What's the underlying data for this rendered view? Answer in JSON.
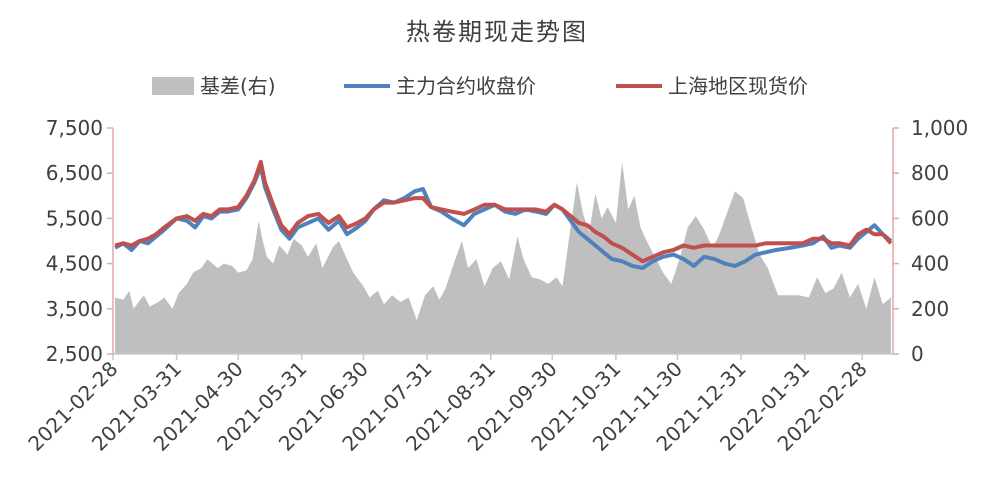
{
  "chart_data": {
    "type": "line",
    "title": "热卷期现走势图",
    "legend_position": "top",
    "grid": false,
    "left_axis": {
      "ylim": [
        2500,
        7500
      ],
      "ticks": [
        7500,
        6500,
        5500,
        4500,
        3500,
        2500
      ],
      "tick_labels": [
        "7,500",
        "6,500",
        "5,500",
        "4,500",
        "3,500",
        "2,500"
      ]
    },
    "right_axis": {
      "ylim": [
        0,
        1000
      ],
      "ticks": [
        1000,
        800,
        600,
        400,
        200,
        0
      ],
      "tick_labels": [
        "1,000",
        "800",
        "600",
        "400",
        "200",
        "0"
      ]
    },
    "x_range": [
      "2021-02-28",
      "2022-03-15"
    ],
    "x_ticks": [
      "2021-02-28",
      "2021-03-31",
      "2021-04-30",
      "2021-05-31",
      "2021-06-30",
      "2021-07-31",
      "2021-08-31",
      "2021-09-30",
      "2021-10-31",
      "2021-11-30",
      "2021-12-31",
      "2022-01-31",
      "2022-02-28"
    ],
    "series": [
      {
        "name": "基差(右)",
        "kind": "area",
        "axis": "right",
        "color": "#bfbfbf",
        "points": [
          [
            "2021-03-01",
            250
          ],
          [
            "2021-03-05",
            240
          ],
          [
            "2021-03-08",
            280
          ],
          [
            "2021-03-10",
            200
          ],
          [
            "2021-03-15",
            260
          ],
          [
            "2021-03-18",
            210
          ],
          [
            "2021-03-22",
            230
          ],
          [
            "2021-03-25",
            250
          ],
          [
            "2021-03-29",
            200
          ],
          [
            "2021-04-01",
            270
          ],
          [
            "2021-04-05",
            310
          ],
          [
            "2021-04-08",
            360
          ],
          [
            "2021-04-12",
            380
          ],
          [
            "2021-04-15",
            420
          ],
          [
            "2021-04-20",
            380
          ],
          [
            "2021-04-23",
            400
          ],
          [
            "2021-04-27",
            390
          ],
          [
            "2021-04-30",
            360
          ],
          [
            "2021-05-04",
            370
          ],
          [
            "2021-05-07",
            420
          ],
          [
            "2021-05-10",
            590
          ],
          [
            "2021-05-12",
            500
          ],
          [
            "2021-05-14",
            430
          ],
          [
            "2021-05-17",
            400
          ],
          [
            "2021-05-20",
            480
          ],
          [
            "2021-05-24",
            440
          ],
          [
            "2021-05-27",
            510
          ],
          [
            "2021-05-31",
            480
          ],
          [
            "2021-06-03",
            430
          ],
          [
            "2021-06-07",
            490
          ],
          [
            "2021-06-10",
            380
          ],
          [
            "2021-06-15",
            470
          ],
          [
            "2021-06-18",
            500
          ],
          [
            "2021-06-22",
            420
          ],
          [
            "2021-06-25",
            360
          ],
          [
            "2021-06-30",
            300
          ],
          [
            "2021-07-03",
            250
          ],
          [
            "2021-07-07",
            280
          ],
          [
            "2021-07-10",
            220
          ],
          [
            "2021-07-14",
            260
          ],
          [
            "2021-07-18",
            230
          ],
          [
            "2021-07-22",
            250
          ],
          [
            "2021-07-26",
            150
          ],
          [
            "2021-07-30",
            260
          ],
          [
            "2021-08-03",
            300
          ],
          [
            "2021-08-06",
            240
          ],
          [
            "2021-08-09",
            290
          ],
          [
            "2021-08-13",
            400
          ],
          [
            "2021-08-17",
            500
          ],
          [
            "2021-08-20",
            380
          ],
          [
            "2021-08-24",
            420
          ],
          [
            "2021-08-28",
            300
          ],
          [
            "2021-09-01",
            380
          ],
          [
            "2021-09-05",
            410
          ],
          [
            "2021-09-09",
            330
          ],
          [
            "2021-09-13",
            520
          ],
          [
            "2021-09-16",
            420
          ],
          [
            "2021-09-20",
            340
          ],
          [
            "2021-09-24",
            330
          ],
          [
            "2021-09-28",
            310
          ],
          [
            "2021-10-02",
            340
          ],
          [
            "2021-10-05",
            300
          ],
          [
            "2021-10-08",
            500
          ],
          [
            "2021-10-12",
            760
          ],
          [
            "2021-10-15",
            620
          ],
          [
            "2021-10-18",
            540
          ],
          [
            "2021-10-21",
            710
          ],
          [
            "2021-10-24",
            600
          ],
          [
            "2021-10-27",
            650
          ],
          [
            "2021-10-31",
            580
          ],
          [
            "2021-11-03",
            850
          ],
          [
            "2021-11-06",
            640
          ],
          [
            "2021-11-09",
            700
          ],
          [
            "2021-11-12",
            560
          ],
          [
            "2021-11-15",
            500
          ],
          [
            "2021-11-19",
            430
          ],
          [
            "2021-11-23",
            360
          ],
          [
            "2021-11-27",
            310
          ],
          [
            "2021-12-01",
            420
          ],
          [
            "2021-12-05",
            560
          ],
          [
            "2021-12-09",
            610
          ],
          [
            "2021-12-13",
            550
          ],
          [
            "2021-12-17",
            470
          ],
          [
            "2021-12-20",
            520
          ],
          [
            "2021-12-24",
            620
          ],
          [
            "2021-12-28",
            720
          ],
          [
            "2022-01-01",
            690
          ],
          [
            "2022-01-05",
            560
          ],
          [
            "2022-01-09",
            440
          ],
          [
            "2022-01-13",
            380
          ],
          [
            "2022-01-18",
            260
          ],
          [
            "2022-01-24",
            260
          ],
          [
            "2022-01-28",
            260
          ],
          [
            "2022-02-02",
            250
          ],
          [
            "2022-02-06",
            340
          ],
          [
            "2022-02-10",
            270
          ],
          [
            "2022-02-14",
            290
          ],
          [
            "2022-02-18",
            360
          ],
          [
            "2022-02-22",
            250
          ],
          [
            "2022-02-26",
            310
          ],
          [
            "2022-03-02",
            200
          ],
          [
            "2022-03-06",
            340
          ],
          [
            "2022-03-10",
            220
          ],
          [
            "2022-03-14",
            250
          ]
        ]
      },
      {
        "name": "主力合约收盘价",
        "kind": "line",
        "axis": "left",
        "color": "#4f81bd",
        "points": [
          [
            "2021-03-01",
            4850
          ],
          [
            "2021-03-05",
            4950
          ],
          [
            "2021-03-09",
            4800
          ],
          [
            "2021-03-13",
            5000
          ],
          [
            "2021-03-17",
            4950
          ],
          [
            "2021-03-21",
            5100
          ],
          [
            "2021-03-25",
            5250
          ],
          [
            "2021-03-31",
            5500
          ],
          [
            "2021-04-05",
            5450
          ],
          [
            "2021-04-09",
            5300
          ],
          [
            "2021-04-13",
            5550
          ],
          [
            "2021-04-17",
            5500
          ],
          [
            "2021-04-21",
            5650
          ],
          [
            "2021-04-25",
            5650
          ],
          [
            "2021-04-30",
            5700
          ],
          [
            "2021-05-04",
            5950
          ],
          [
            "2021-05-08",
            6300
          ],
          [
            "2021-05-11",
            6650
          ],
          [
            "2021-05-13",
            6200
          ],
          [
            "2021-05-17",
            5700
          ],
          [
            "2021-05-21",
            5250
          ],
          [
            "2021-05-25",
            5050
          ],
          [
            "2021-05-29",
            5300
          ],
          [
            "2021-06-03",
            5400
          ],
          [
            "2021-06-08",
            5500
          ],
          [
            "2021-06-13",
            5250
          ],
          [
            "2021-06-18",
            5450
          ],
          [
            "2021-06-22",
            5150
          ],
          [
            "2021-06-27",
            5300
          ],
          [
            "2021-07-01",
            5450
          ],
          [
            "2021-07-05",
            5700
          ],
          [
            "2021-07-10",
            5900
          ],
          [
            "2021-07-15",
            5850
          ],
          [
            "2021-07-20",
            5950
          ],
          [
            "2021-07-25",
            6100
          ],
          [
            "2021-07-29",
            6150
          ],
          [
            "2021-08-02",
            5750
          ],
          [
            "2021-08-07",
            5650
          ],
          [
            "2021-08-12",
            5500
          ],
          [
            "2021-08-18",
            5350
          ],
          [
            "2021-08-23",
            5600
          ],
          [
            "2021-08-28",
            5700
          ],
          [
            "2021-09-02",
            5800
          ],
          [
            "2021-09-07",
            5650
          ],
          [
            "2021-09-12",
            5600
          ],
          [
            "2021-09-17",
            5700
          ],
          [
            "2021-09-22",
            5650
          ],
          [
            "2021-09-27",
            5600
          ],
          [
            "2021-10-01",
            5800
          ],
          [
            "2021-10-05",
            5700
          ],
          [
            "2021-10-09",
            5450
          ],
          [
            "2021-10-13",
            5200
          ],
          [
            "2021-10-17",
            5050
          ],
          [
            "2021-10-21",
            4900
          ],
          [
            "2021-10-25",
            4750
          ],
          [
            "2021-10-29",
            4600
          ],
          [
            "2021-11-03",
            4550
          ],
          [
            "2021-11-08",
            4450
          ],
          [
            "2021-11-13",
            4400
          ],
          [
            "2021-11-18",
            4550
          ],
          [
            "2021-11-23",
            4650
          ],
          [
            "2021-11-28",
            4700
          ],
          [
            "2021-12-03",
            4600
          ],
          [
            "2021-12-08",
            4450
          ],
          [
            "2021-12-13",
            4650
          ],
          [
            "2021-12-18",
            4600
          ],
          [
            "2021-12-23",
            4500
          ],
          [
            "2021-12-28",
            4450
          ],
          [
            "2022-01-02",
            4550
          ],
          [
            "2022-01-07",
            4700
          ],
          [
            "2022-01-12",
            4750
          ],
          [
            "2022-01-17",
            4800
          ],
          [
            "2022-01-24",
            4850
          ],
          [
            "2022-01-30",
            4900
          ],
          [
            "2022-02-04",
            4950
          ],
          [
            "2022-02-09",
            5100
          ],
          [
            "2022-02-13",
            4850
          ],
          [
            "2022-02-17",
            4900
          ],
          [
            "2022-02-22",
            4850
          ],
          [
            "2022-02-26",
            5050
          ],
          [
            "2022-03-02",
            5200
          ],
          [
            "2022-03-06",
            5350
          ],
          [
            "2022-03-10",
            5150
          ],
          [
            "2022-03-14",
            5000
          ]
        ]
      },
      {
        "name": "上海地区现货价",
        "kind": "line",
        "axis": "left",
        "color": "#c0504d",
        "points": [
          [
            "2021-03-01",
            4900
          ],
          [
            "2021-03-05",
            4950
          ],
          [
            "2021-03-09",
            4900
          ],
          [
            "2021-03-13",
            5000
          ],
          [
            "2021-03-17",
            5050
          ],
          [
            "2021-03-21",
            5150
          ],
          [
            "2021-03-25",
            5300
          ],
          [
            "2021-03-31",
            5500
          ],
          [
            "2021-04-05",
            5550
          ],
          [
            "2021-04-09",
            5450
          ],
          [
            "2021-04-13",
            5600
          ],
          [
            "2021-04-17",
            5550
          ],
          [
            "2021-04-21",
            5700
          ],
          [
            "2021-04-25",
            5700
          ],
          [
            "2021-04-30",
            5750
          ],
          [
            "2021-05-04",
            6000
          ],
          [
            "2021-05-08",
            6350
          ],
          [
            "2021-05-11",
            6750
          ],
          [
            "2021-05-13",
            6300
          ],
          [
            "2021-05-17",
            5800
          ],
          [
            "2021-05-21",
            5350
          ],
          [
            "2021-05-25",
            5150
          ],
          [
            "2021-05-29",
            5400
          ],
          [
            "2021-06-03",
            5550
          ],
          [
            "2021-06-08",
            5600
          ],
          [
            "2021-06-13",
            5400
          ],
          [
            "2021-06-18",
            5550
          ],
          [
            "2021-06-22",
            5300
          ],
          [
            "2021-06-27",
            5400
          ],
          [
            "2021-07-01",
            5500
          ],
          [
            "2021-07-05",
            5700
          ],
          [
            "2021-07-10",
            5850
          ],
          [
            "2021-07-15",
            5850
          ],
          [
            "2021-07-20",
            5900
          ],
          [
            "2021-07-25",
            5950
          ],
          [
            "2021-07-29",
            5950
          ],
          [
            "2021-08-02",
            5750
          ],
          [
            "2021-08-07",
            5700
          ],
          [
            "2021-08-12",
            5650
          ],
          [
            "2021-08-18",
            5600
          ],
          [
            "2021-08-23",
            5700
          ],
          [
            "2021-08-28",
            5800
          ],
          [
            "2021-09-02",
            5800
          ],
          [
            "2021-09-07",
            5700
          ],
          [
            "2021-09-12",
            5700
          ],
          [
            "2021-09-17",
            5700
          ],
          [
            "2021-09-22",
            5700
          ],
          [
            "2021-09-27",
            5650
          ],
          [
            "2021-10-01",
            5800
          ],
          [
            "2021-10-05",
            5700
          ],
          [
            "2021-10-09",
            5550
          ],
          [
            "2021-10-13",
            5400
          ],
          [
            "2021-10-17",
            5350
          ],
          [
            "2021-10-21",
            5200
          ],
          [
            "2021-10-25",
            5100
          ],
          [
            "2021-10-29",
            4950
          ],
          [
            "2021-11-03",
            4850
          ],
          [
            "2021-11-08",
            4700
          ],
          [
            "2021-11-13",
            4550
          ],
          [
            "2021-11-18",
            4650
          ],
          [
            "2021-11-23",
            4750
          ],
          [
            "2021-11-28",
            4800
          ],
          [
            "2021-12-03",
            4900
          ],
          [
            "2021-12-08",
            4850
          ],
          [
            "2021-12-13",
            4900
          ],
          [
            "2021-12-18",
            4900
          ],
          [
            "2021-12-23",
            4900
          ],
          [
            "2021-12-28",
            4900
          ],
          [
            "2022-01-02",
            4900
          ],
          [
            "2022-01-07",
            4900
          ],
          [
            "2022-01-12",
            4950
          ],
          [
            "2022-01-17",
            4950
          ],
          [
            "2022-01-24",
            4950
          ],
          [
            "2022-01-30",
            4950
          ],
          [
            "2022-02-04",
            5050
          ],
          [
            "2022-02-09",
            5050
          ],
          [
            "2022-02-13",
            4950
          ],
          [
            "2022-02-17",
            4950
          ],
          [
            "2022-02-22",
            4900
          ],
          [
            "2022-02-26",
            5150
          ],
          [
            "2022-03-02",
            5250
          ],
          [
            "2022-03-06",
            5150
          ],
          [
            "2022-03-10",
            5150
          ],
          [
            "2022-03-14",
            4950
          ]
        ]
      }
    ]
  }
}
